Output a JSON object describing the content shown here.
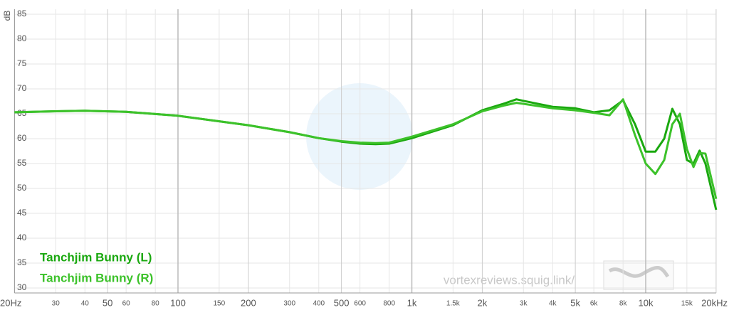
{
  "chart_data": {
    "type": "line",
    "y_label": "dB",
    "x_scale": "log",
    "grid": true,
    "legend": "bottom-left",
    "watermark": "vortexreviews.squig.link/",
    "xlim": [
      20,
      20000
    ],
    "ylim": [
      29,
      86
    ],
    "yticks": [
      30,
      35,
      40,
      45,
      50,
      55,
      60,
      65,
      70,
      75,
      80,
      85
    ],
    "xticks": [
      {
        "value": 20,
        "label": "20Hz"
      },
      30,
      40,
      50,
      60,
      80,
      100,
      150,
      200,
      300,
      400,
      500,
      600,
      800,
      {
        "value": 1000,
        "label": "1k"
      },
      {
        "value": 1500,
        "label": "1.5k"
      },
      {
        "value": 2000,
        "label": "2k"
      },
      {
        "value": 3000,
        "label": "3k"
      },
      {
        "value": 4000,
        "label": "4k"
      },
      {
        "value": 5000,
        "label": "5k"
      },
      {
        "value": 6000,
        "label": "6k"
      },
      {
        "value": 8000,
        "label": "8k"
      },
      {
        "value": 10000,
        "label": "10k"
      },
      {
        "value": 15000,
        "label": "15k"
      },
      {
        "value": 20000,
        "label": "20kHz"
      }
    ],
    "x": [
      20,
      30,
      40,
      60,
      100,
      200,
      300,
      400,
      500,
      600,
      700,
      800,
      1000,
      1500,
      2000,
      2500,
      2800,
      3000,
      4000,
      5000,
      6000,
      7000,
      8000,
      9000,
      10000,
      11000,
      12000,
      13000,
      14000,
      15000,
      16000,
      17000,
      18000,
      20000
    ],
    "series": [
      {
        "name": "Tanchjim Bunny (L)",
        "color": "#1aa80f",
        "values": [
          65.3,
          65.5,
          65.6,
          65.4,
          64.6,
          62.7,
          61.3,
          60.1,
          59.4,
          59.0,
          58.9,
          59.0,
          60.1,
          62.7,
          65.7,
          67.1,
          67.9,
          67.6,
          66.4,
          66.1,
          65.3,
          65.7,
          67.7,
          62.9,
          57.4,
          57.4,
          60.0,
          66.0,
          62.9,
          55.7,
          55.0,
          57.6,
          55.0,
          45.7
        ]
      },
      {
        "name": "Tanchjim Bunny (R)",
        "color": "#3cc22a",
        "values": [
          65.3,
          65.5,
          65.6,
          65.4,
          64.6,
          62.7,
          61.3,
          60.1,
          59.5,
          59.2,
          59.1,
          59.2,
          60.4,
          62.9,
          65.5,
          66.7,
          67.2,
          67.0,
          66.1,
          65.7,
          65.2,
          64.7,
          67.9,
          60.7,
          55.0,
          52.9,
          55.7,
          62.9,
          65.0,
          57.9,
          54.3,
          57.1,
          57.0,
          47.9
        ]
      }
    ]
  }
}
